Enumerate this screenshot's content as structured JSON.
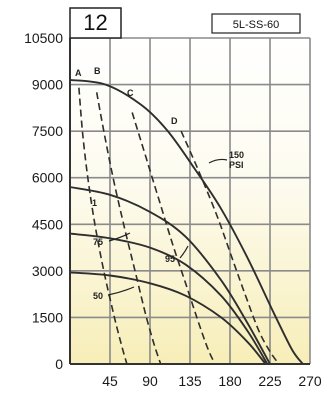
{
  "chart_number": "12",
  "model": "5L-SS-60",
  "chart_data": {
    "type": "line",
    "title": "",
    "xlabel": "",
    "ylabel": "",
    "xlim": [
      0,
      270
    ],
    "ylim": [
      0,
      10500
    ],
    "xticks": [
      "45",
      "90",
      "135",
      "180",
      "225",
      "270"
    ],
    "yticks": [
      "0",
      "1500",
      "3000",
      "4500",
      "6000",
      "7500",
      "9000",
      "10500"
    ],
    "grid": true,
    "series": [
      {
        "name": "150 PSI",
        "style": "solid",
        "x": [
          0,
          40,
          80,
          110,
          140,
          170,
          200,
          230,
          250,
          262
        ],
        "y": [
          9150,
          9000,
          8350,
          7500,
          6300,
          5000,
          3400,
          1600,
          450,
          0
        ]
      },
      {
        "name": "1",
        "style": "solid",
        "x": [
          0,
          45,
          90,
          130,
          170,
          200,
          225
        ],
        "y": [
          5700,
          5450,
          4900,
          4100,
          2700,
          1300,
          0
        ]
      },
      {
        "name": "75",
        "style": "solid",
        "x": [
          0,
          45,
          90,
          130,
          170,
          200,
          222
        ],
        "y": [
          4200,
          4050,
          3750,
          3200,
          2200,
          1050,
          0
        ]
      },
      {
        "name": "50",
        "style": "solid",
        "x": [
          0,
          45,
          90,
          130,
          170,
          200,
          220
        ],
        "y": [
          2950,
          2850,
          2600,
          2200,
          1500,
          700,
          0
        ]
      },
      {
        "name": "A",
        "style": "dashed",
        "x": [
          10,
          14,
          20,
          28,
          38,
          50,
          58,
          64
        ],
        "y": [
          8900,
          7500,
          6000,
          4500,
          3000,
          1500,
          600,
          0
        ]
      },
      {
        "name": "B",
        "style": "dashed",
        "x": [
          30,
          40,
          50,
          62,
          74,
          86,
          95,
          102
        ],
        "y": [
          8750,
          7200,
          5800,
          4300,
          2900,
          1500,
          600,
          0
        ]
      },
      {
        "name": "C",
        "style": "dashed",
        "x": [
          70,
          85,
          100,
          115,
          130,
          145,
          155,
          163
        ],
        "y": [
          8100,
          6700,
          5300,
          3900,
          2600,
          1300,
          500,
          0
        ]
      },
      {
        "name": "D",
        "style": "dashed",
        "x": [
          125,
          145,
          165,
          180,
          195,
          212,
          225,
          235
        ],
        "y": [
          7500,
          6200,
          4800,
          3600,
          2400,
          1100,
          400,
          0
        ]
      }
    ],
    "annotations": [
      "A",
      "B",
      "C",
      "D",
      "1",
      "75",
      "95",
      "50",
      "150",
      "PSI"
    ]
  }
}
